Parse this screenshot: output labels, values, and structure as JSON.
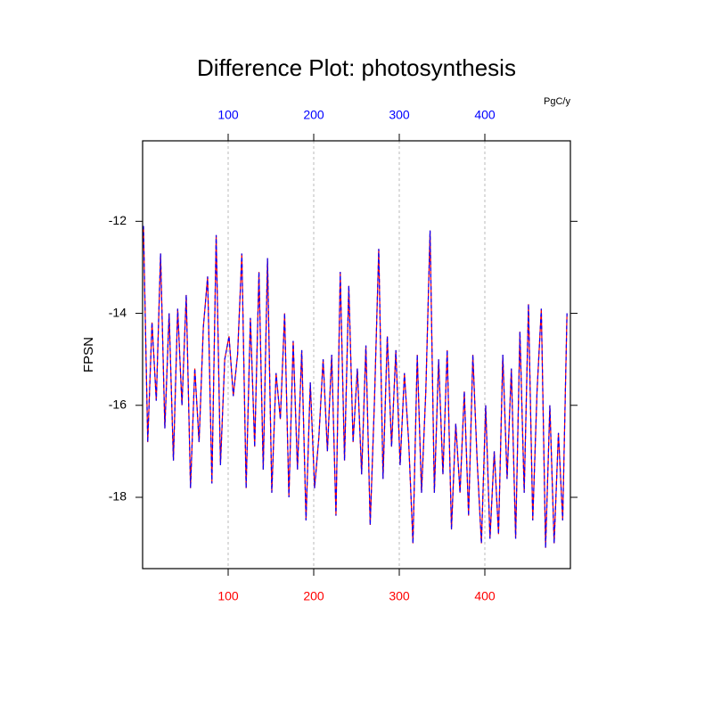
{
  "chart_data": {
    "type": "line",
    "title": "Difference Plot: photosynthesis",
    "ylabel": "FPSN",
    "top_label": "PgC/y",
    "xlim": [
      0,
      500
    ],
    "xticks": [
      100,
      200,
      300,
      400
    ],
    "xtick_color_bottom": "#ff0000",
    "xtick_color_top": "#0000ff",
    "ylim": [
      -19.55,
      -10.25
    ],
    "yticks": [
      -12,
      -14,
      -16,
      -18
    ],
    "grid": true,
    "x": [
      1,
      6,
      11,
      16,
      21,
      26,
      31,
      36,
      41,
      46,
      51,
      56,
      61,
      66,
      71,
      76,
      81,
      86,
      91,
      96,
      101,
      106,
      111,
      116,
      121,
      126,
      131,
      136,
      141,
      146,
      151,
      156,
      161,
      166,
      171,
      176,
      181,
      186,
      191,
      196,
      201,
      206,
      211,
      216,
      221,
      226,
      231,
      236,
      241,
      246,
      251,
      256,
      261,
      266,
      271,
      276,
      281,
      286,
      291,
      296,
      301,
      306,
      311,
      316,
      321,
      326,
      331,
      336,
      341,
      346,
      351,
      356,
      361,
      366,
      371,
      376,
      381,
      386,
      391,
      396,
      401,
      406,
      411,
      416,
      421,
      426,
      431,
      436,
      441,
      446,
      451,
      456,
      461,
      466,
      471,
      476,
      481,
      486,
      491,
      496
    ],
    "series": [
      {
        "color": "#ff0000",
        "dashed": false,
        "values": [
          -12.1,
          -16.8,
          -14.2,
          -15.9,
          -12.7,
          -16.5,
          -14.0,
          -17.2,
          -13.9,
          -16.0,
          -13.6,
          -17.8,
          -15.2,
          -16.8,
          -14.3,
          -13.2,
          -17.7,
          -12.3,
          -17.3,
          -15.0,
          -14.5,
          -15.8,
          -14.9,
          -12.7,
          -17.8,
          -14.1,
          -16.9,
          -13.1,
          -17.4,
          -12.8,
          -17.9,
          -15.3,
          -16.3,
          -14.0,
          -18.0,
          -14.6,
          -17.4,
          -14.8,
          -18.5,
          -15.5,
          -17.8,
          -16.7,
          -15.0,
          -17.0,
          -14.9,
          -18.4,
          -13.1,
          -17.2,
          -13.4,
          -16.8,
          -15.2,
          -17.5,
          -14.7,
          -18.6,
          -15.9,
          -12.6,
          -17.6,
          -14.5,
          -16.9,
          -14.8,
          -17.3,
          -15.3,
          -16.8,
          -19.0,
          -14.9,
          -17.9,
          -15.7,
          -12.2,
          -17.9,
          -15.0,
          -17.5,
          -14.8,
          -18.7,
          -16.4,
          -17.9,
          -15.7,
          -18.4,
          -14.9,
          -17.2,
          -19.0,
          -16.0,
          -18.9,
          -17.0,
          -18.8,
          -14.9,
          -17.6,
          -15.2,
          -18.9,
          -14.4,
          -17.9,
          -13.8,
          -18.5,
          -15.7,
          -13.9,
          -19.1,
          -16.0,
          -19.0,
          -16.6,
          -18.5,
          -14.0
        ]
      },
      {
        "color": "#0000ff",
        "dashed": true,
        "values": [
          -12.1,
          -16.8,
          -14.2,
          -15.9,
          -12.7,
          -16.5,
          -14.0,
          -17.2,
          -13.9,
          -16.0,
          -13.6,
          -17.8,
          -15.2,
          -16.8,
          -14.3,
          -13.2,
          -17.7,
          -12.3,
          -17.3,
          -15.0,
          -14.5,
          -15.8,
          -14.9,
          -12.7,
          -17.8,
          -14.1,
          -16.9,
          -13.1,
          -17.4,
          -12.8,
          -17.9,
          -15.3,
          -16.3,
          -14.0,
          -18.0,
          -14.6,
          -17.4,
          -14.8,
          -18.5,
          -15.5,
          -17.8,
          -16.7,
          -15.0,
          -17.0,
          -14.9,
          -18.4,
          -13.1,
          -17.2,
          -13.4,
          -16.8,
          -15.2,
          -17.5,
          -14.7,
          -18.6,
          -15.9,
          -12.6,
          -17.6,
          -14.5,
          -16.9,
          -14.8,
          -17.3,
          -15.3,
          -16.8,
          -19.0,
          -14.9,
          -17.9,
          -15.7,
          -12.2,
          -17.9,
          -15.0,
          -17.5,
          -14.8,
          -18.7,
          -16.4,
          -17.9,
          -15.7,
          -18.4,
          -14.9,
          -17.2,
          -19.0,
          -16.0,
          -18.9,
          -17.0,
          -18.8,
          -14.9,
          -17.6,
          -15.2,
          -18.9,
          -14.4,
          -17.9,
          -13.8,
          -18.5,
          -15.7,
          -13.9,
          -19.1,
          -16.0,
          -19.0,
          -16.6,
          -18.5,
          -14.0
        ]
      }
    ]
  }
}
